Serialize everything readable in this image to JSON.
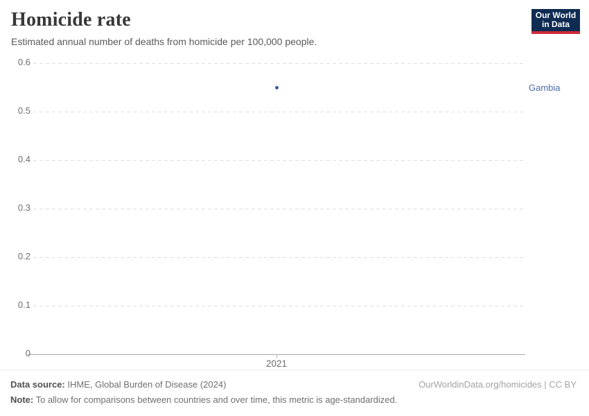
{
  "header": {
    "title": "Homicide rate",
    "subtitle": "Estimated annual number of deaths from homicide per 100,000 people.",
    "logo": {
      "line1": "Our World",
      "line2": "in Data",
      "bg_color": "#0e2b52",
      "accent_color": "#cc2b39"
    }
  },
  "chart_data": {
    "type": "scatter",
    "title": "Homicide rate",
    "subtitle": "Estimated annual number of deaths from homicide per 100,000 people.",
    "xlabel": "",
    "ylabel": "",
    "ylim": [
      0,
      0.6
    ],
    "yticks": [
      0,
      0.1,
      0.2,
      0.3,
      0.4,
      0.5,
      0.6
    ],
    "xticks": [
      2021
    ],
    "grid": "horizontal-dashed",
    "legend_position": "entity-label-right",
    "series": [
      {
        "name": "Gambia",
        "x": [
          2021
        ],
        "y": [
          0.55
        ],
        "color": "#3e5a9e",
        "label_color": "#4d6ba8"
      }
    ]
  },
  "footer": {
    "data_source_label": "Data source:",
    "data_source_value": " IHME, Global Burden of Disease (2024)",
    "note_label": "Note:",
    "note_value": " To allow for comparisons between countries and over time, this metric is age-standardized.",
    "credit": "OurWorldinData.org/homicides | CC BY"
  }
}
